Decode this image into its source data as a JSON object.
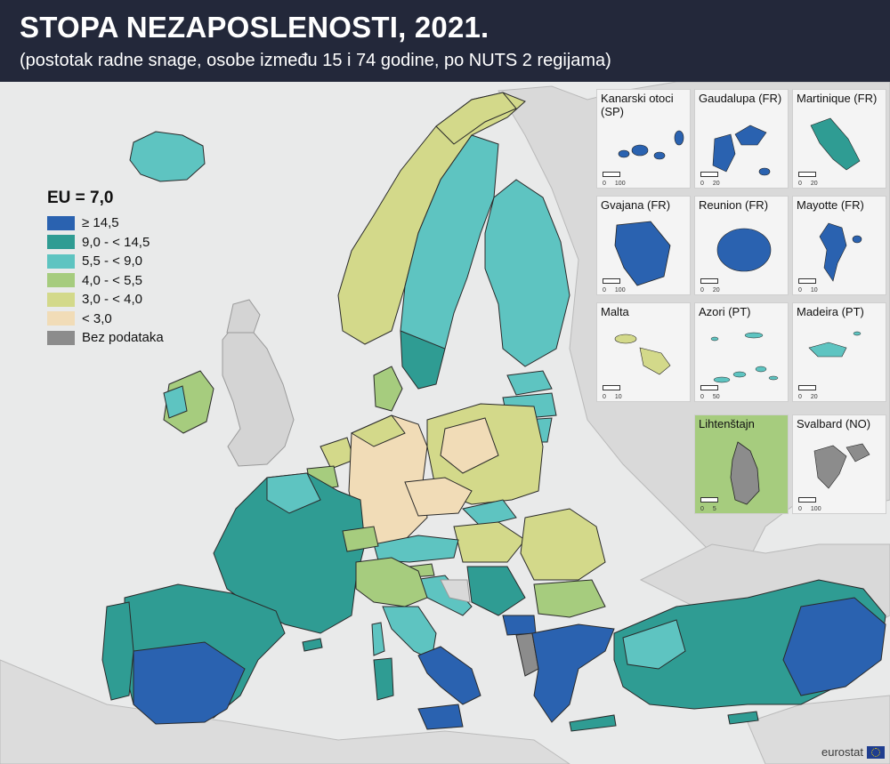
{
  "header": {
    "title": "STOPA NEZAPOSLENOSTI, 2021.",
    "subtitle": "(postotak radne snage, osobe između 15 i 74 godine, po NUTS 2 regijama)"
  },
  "legend": {
    "title": "EU = 7,0",
    "items": [
      {
        "label": "≥ 14,5",
        "color": "#2a62b0"
      },
      {
        "label": "9,0 - < 14,5",
        "color": "#2f9c93"
      },
      {
        "label": "5,5 - < 9,0",
        "color": "#5ec4c1"
      },
      {
        "label": "4,0 - < 5,5",
        "color": "#a6cc7e"
      },
      {
        "label": "3,0 - < 4,0",
        "color": "#d3d98a"
      },
      {
        "label": "< 3,0",
        "color": "#f1dcb7"
      },
      {
        "label": "Bez podataka",
        "color": "#8c8c8c"
      }
    ]
  },
  "colors": {
    "header_bg": "#23283a",
    "background": "#e9eaea",
    "non_covered": "#d9d9d9",
    "borders": "#2a2a2a"
  },
  "insets": [
    {
      "name": "Kanarski otoci (SP)",
      "scale_labels": [
        "0",
        "100"
      ],
      "class_color": "#2a62b0"
    },
    {
      "name": "Gaudalupa (FR)",
      "scale_labels": [
        "0",
        "20"
      ],
      "class_color": "#2a62b0"
    },
    {
      "name": "Martinique (FR)",
      "scale_labels": [
        "0",
        "20"
      ],
      "class_color": "#2f9c93"
    },
    {
      "name": "Gvajana (FR)",
      "scale_labels": [
        "0",
        "100"
      ],
      "class_color": "#2a62b0"
    },
    {
      "name": "Reunion (FR)",
      "scale_labels": [
        "0",
        "20"
      ],
      "class_color": "#2a62b0"
    },
    {
      "name": "Mayotte (FR)",
      "scale_labels": [
        "0",
        "10"
      ],
      "class_color": "#2a62b0"
    },
    {
      "name": "Malta",
      "scale_labels": [
        "0",
        "10"
      ],
      "class_color": "#d3d98a"
    },
    {
      "name": "Azori (PT)",
      "scale_labels": [
        "0",
        "50"
      ],
      "class_color": "#5ec4c1"
    },
    {
      "name": "Madeira (PT)",
      "scale_labels": [
        "0",
        "20"
      ],
      "class_color": "#5ec4c1"
    },
    {
      "name": "Lihtenštajn",
      "scale_labels": [
        "0",
        "5"
      ],
      "class_color": "#8c8c8c"
    },
    {
      "name": "Svalbard (NO)",
      "scale_labels": [
        "0",
        "100"
      ],
      "class_color": "#8c8c8c"
    }
  ],
  "source": {
    "label": "eurostat"
  }
}
